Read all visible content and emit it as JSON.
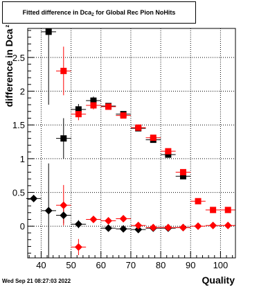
{
  "title": {
    "main": "Fitted difference in Dca",
    "sub": "Z",
    "rest": "for Global Rec Pion NoHits"
  },
  "ylabel": {
    "main": "difference in Dca",
    "sub": "z"
  },
  "xlabel": "Quality",
  "timestamp": "Wed Sep 21 08:27:03 2022",
  "colors": {
    "black_series": "#000000",
    "red_series": "#ff0000",
    "grid": "#000000"
  },
  "chart_data": {
    "type": "scatter",
    "grid": true,
    "xlim": [
      35.5,
      105
    ],
    "ylim": [
      -0.47,
      2.93
    ],
    "x_ticks": [
      40,
      50,
      60,
      70,
      80,
      90,
      100
    ],
    "y_ticks": [
      0,
      0.5,
      1,
      1.5,
      2,
      2.5
    ],
    "y_tick_labels": [
      "0",
      "0.5",
      "1",
      "1.5",
      "2",
      "2.5"
    ],
    "series": [
      {
        "color": "black",
        "marker_upper": "square",
        "marker_lower": "diamond",
        "upper_points": [
          {
            "x": 42.5,
            "y": 2.88,
            "err": 1.08
          },
          {
            "x": 47.5,
            "y": 1.3,
            "err": 0.3
          },
          {
            "x": 52.5,
            "y": 1.73,
            "err": 0.08
          },
          {
            "x": 57.5,
            "y": 1.86,
            "err": 0.06
          },
          {
            "x": 62.5,
            "y": 1.78,
            "err": 0.04
          },
          {
            "x": 67.5,
            "y": 1.66,
            "err": 0.03
          },
          {
            "x": 72.5,
            "y": 1.45,
            "err": 0.03
          },
          {
            "x": 77.5,
            "y": 1.28,
            "err": 0.03
          },
          {
            "x": 82.5,
            "y": 1.06,
            "err": 0.03
          },
          {
            "x": 87.5,
            "y": 0.74,
            "err": 0.03
          }
        ],
        "lower_points": [
          {
            "x": 37.5,
            "y": 0.41,
            "err": 0.05
          },
          {
            "x": 42.5,
            "y": 0.23,
            "err": 0.7
          },
          {
            "x": 47.5,
            "y": 0.16,
            "err": 0.12
          },
          {
            "x": 52.5,
            "y": 0.03,
            "err": 0.06
          },
          {
            "x": 62.5,
            "y": -0.03,
            "err": 0.02
          },
          {
            "x": 67.5,
            "y": -0.04,
            "err": 0.02
          },
          {
            "x": 72.5,
            "y": -0.05,
            "err": 0.02
          },
          {
            "x": 77.5,
            "y": -0.03,
            "err": 0.02
          },
          {
            "x": 82.5,
            "y": -0.03,
            "err": 0.02
          },
          {
            "x": 87.5,
            "y": -0.02,
            "err": 0.02
          }
        ]
      },
      {
        "color": "red",
        "marker_upper": "square",
        "marker_lower": "diamond",
        "upper_points": [
          {
            "x": 47.5,
            "y": 2.3,
            "err": 0.36
          },
          {
            "x": 52.5,
            "y": 1.66,
            "err": 0.09
          },
          {
            "x": 57.5,
            "y": 1.79,
            "err": 0.06
          },
          {
            "x": 62.5,
            "y": 1.77,
            "err": 0.04
          },
          {
            "x": 67.5,
            "y": 1.64,
            "err": 0.03
          },
          {
            "x": 72.5,
            "y": 1.46,
            "err": 0.03
          },
          {
            "x": 77.5,
            "y": 1.31,
            "err": 0.03
          },
          {
            "x": 82.5,
            "y": 1.11,
            "err": 0.03
          },
          {
            "x": 87.5,
            "y": 0.8,
            "err": 0.03
          },
          {
            "x": 92.5,
            "y": 0.37,
            "err": 0.02
          },
          {
            "x": 97.5,
            "y": 0.24,
            "err": 0.02
          },
          {
            "x": 102.5,
            "y": 0.24,
            "err": 0.02
          }
        ],
        "lower_points": [
          {
            "x": 47.5,
            "y": 0.31,
            "err": 0.3
          },
          {
            "x": 52.5,
            "y": -0.31,
            "err": 0.12
          },
          {
            "x": 57.5,
            "y": 0.1,
            "err": 0.05
          },
          {
            "x": 62.5,
            "y": 0.08,
            "err": 0.03
          },
          {
            "x": 67.5,
            "y": 0.11,
            "err": 0.02
          },
          {
            "x": 72.5,
            "y": 0.01,
            "err": 0.02
          },
          {
            "x": 77.5,
            "y": -0.02,
            "err": 0.02
          },
          {
            "x": 82.5,
            "y": -0.02,
            "err": 0.02
          },
          {
            "x": 87.5,
            "y": -0.02,
            "err": 0.02
          },
          {
            "x": 92.5,
            "y": 0.0,
            "err": 0.02
          },
          {
            "x": 97.5,
            "y": 0.01,
            "err": 0.02
          },
          {
            "x": 102.5,
            "y": 0.01,
            "err": 0.02
          }
        ]
      }
    ]
  }
}
